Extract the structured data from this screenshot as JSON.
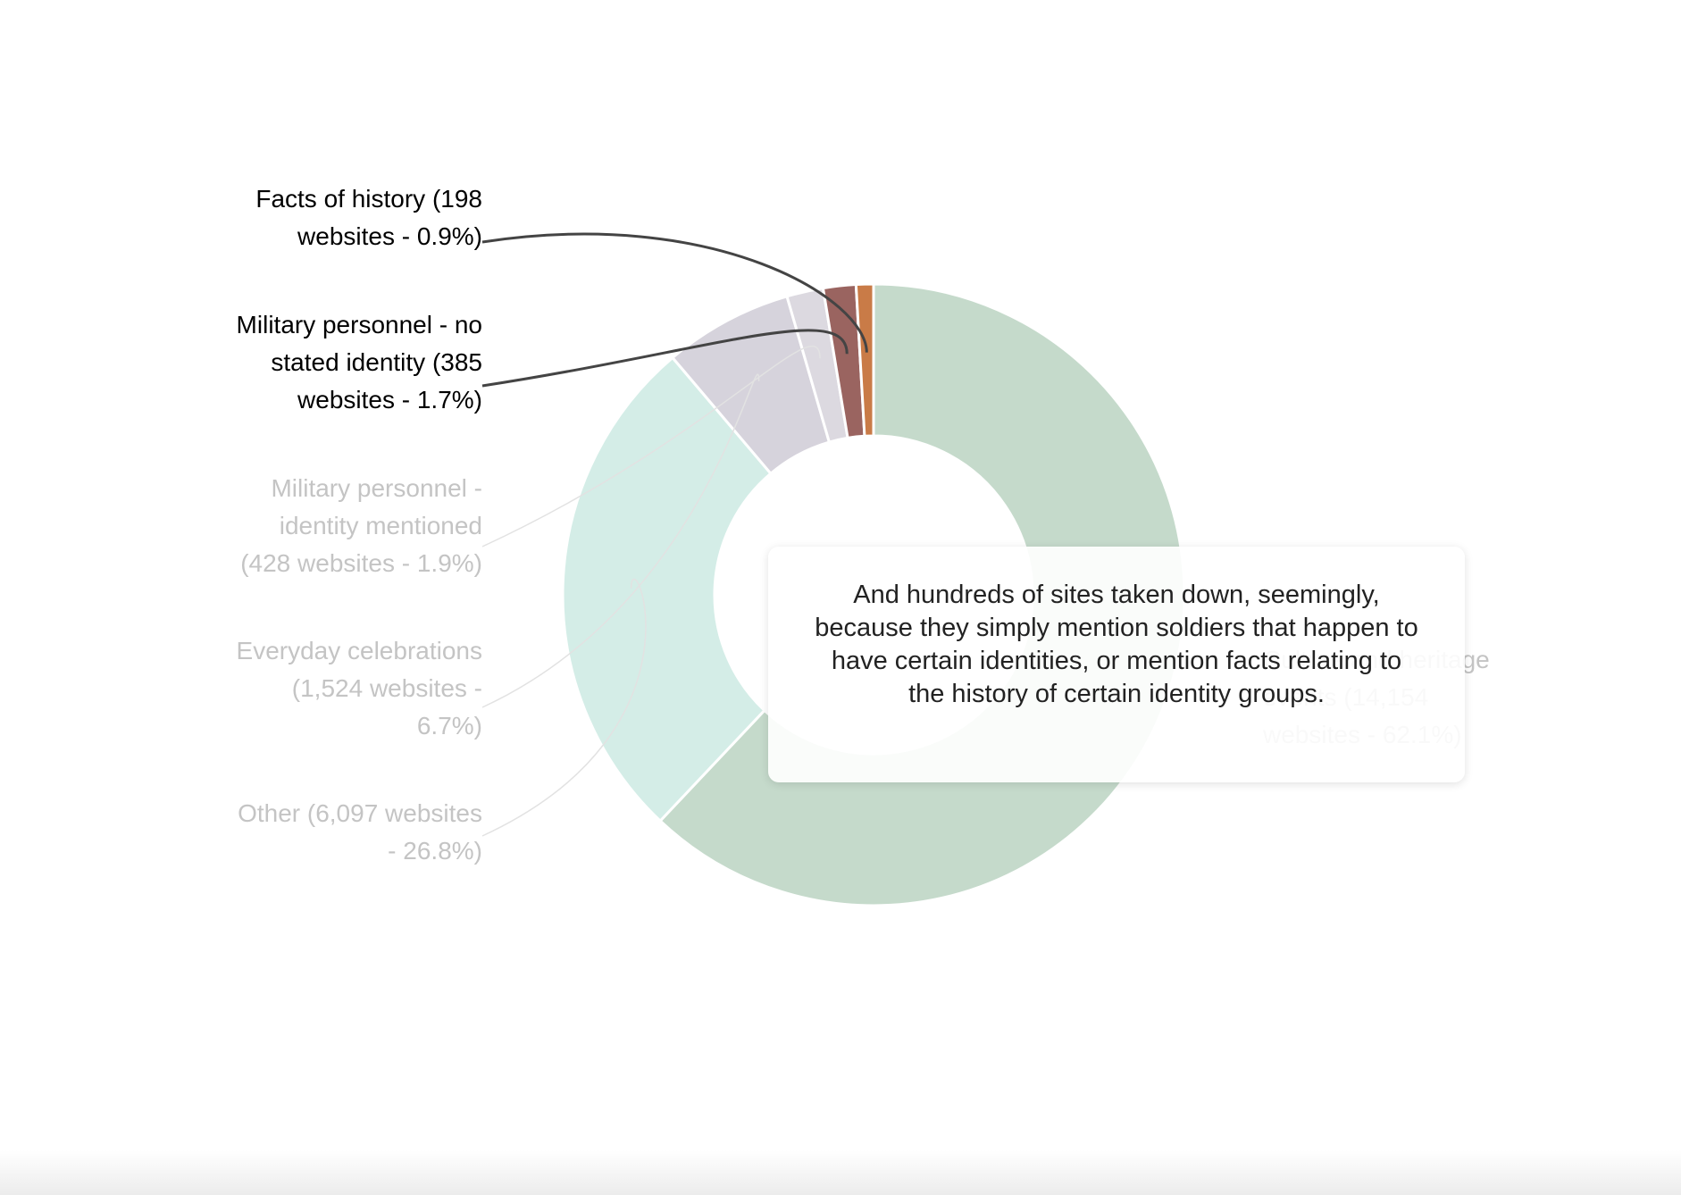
{
  "chart_data": {
    "type": "pie",
    "donut": true,
    "labels": [
      "Culture and heritage events (14,154 websites - 62.1%)",
      "Other (6,097 websites - 26.8%)",
      "Everyday celebrations (1,524 websites - 6.7%)",
      "Military personnel - identity mentioned (428 websites - 1.9%)",
      "Military personnel - no stated identity (385 websites - 1.7%)",
      "Facts of history (198 websites - 0.9%)"
    ],
    "values": [
      62.1,
      26.8,
      6.7,
      1.9,
      1.7,
      0.9
    ],
    "colors": [
      "#c5dacb",
      "#d4ede7",
      "#d6d3dc",
      "#dcd9e0",
      "#9a6460",
      "#c97b47"
    ],
    "highlight": [
      4,
      5
    ],
    "annotation": "And hundreds of sites taken down, seemingly, because they simply mention soldiers that happen to have certain identities, or mention facts relating to the history of certain identity groups."
  }
}
